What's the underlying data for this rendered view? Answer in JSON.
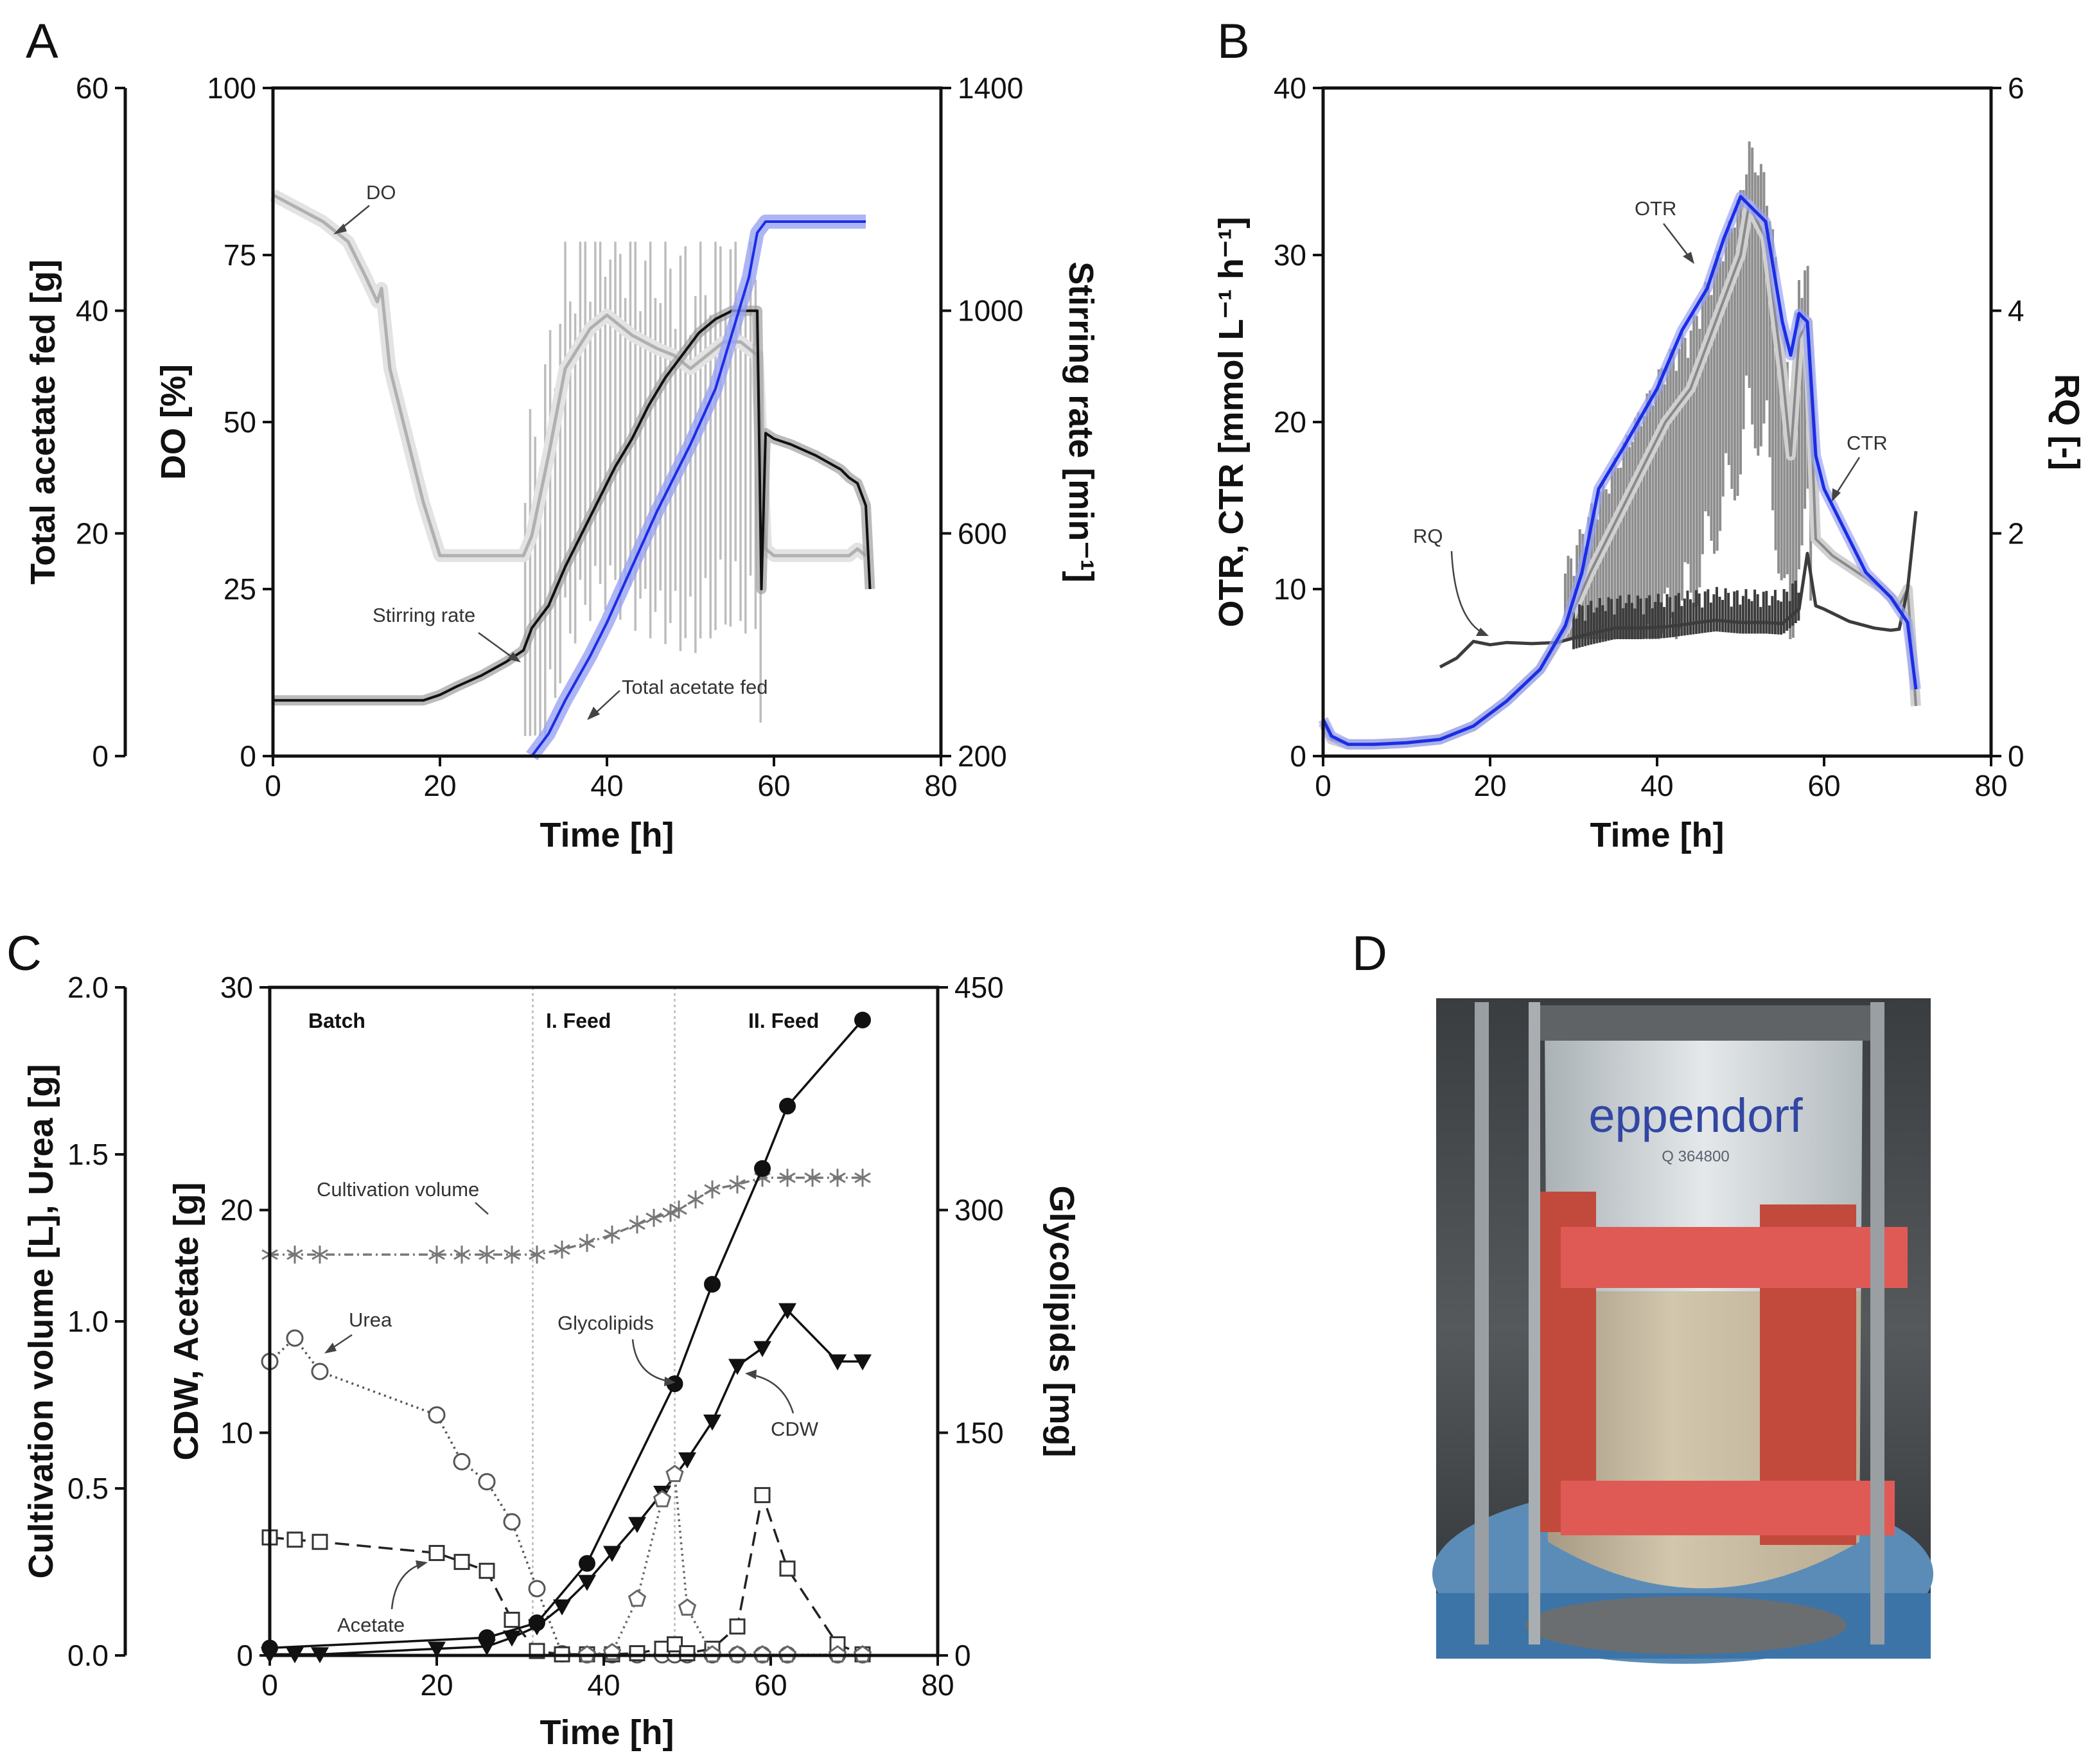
{
  "colors": {
    "axis": "#111111",
    "light_gray": "#bdbdbd",
    "mid_gray": "#8a8a8a",
    "dark_gray": "#3c3c3c",
    "black": "#111111",
    "blue": "#1a2ee6",
    "blue_band": "#9aa3f2",
    "phase_line": "#b8b8b8"
  },
  "chart_data": [
    {
      "panel": "A",
      "type": "line",
      "xlabel": "Time [h]",
      "xlim": [
        0,
        80
      ],
      "xticks": [
        0,
        20,
        40,
        60,
        80
      ],
      "axes": {
        "total_acetate": {
          "label": "Total acetate fed [g]",
          "lim": [
            0,
            60
          ],
          "ticks": [
            0,
            20,
            40,
            60
          ]
        },
        "do": {
          "label": "DO [%]",
          "lim": [
            0,
            100
          ],
          "ticks": [
            0,
            25,
            50,
            75,
            100
          ]
        },
        "stirring": {
          "label": "Stirring rate [min⁻¹]",
          "lim": [
            200,
            1400
          ],
          "ticks": [
            200,
            600,
            1000,
            1400
          ]
        }
      },
      "series": [
        {
          "name": "DO",
          "axis": "do",
          "x": [
            0,
            3,
            6,
            9,
            11,
            12.5,
            13,
            13.5,
            14,
            16,
            18,
            20,
            21,
            22,
            25,
            28,
            30,
            31,
            33,
            35,
            38,
            40,
            43,
            46,
            48,
            50,
            52,
            54,
            56,
            58,
            59,
            60,
            63,
            66,
            69,
            70,
            71
          ],
          "y": [
            84,
            82,
            80,
            77,
            72,
            68,
            70,
            64,
            58,
            48,
            38,
            30,
            30,
            30,
            30,
            30,
            30,
            33,
            45,
            58,
            64,
            66,
            63,
            61,
            60,
            58,
            60,
            62,
            62,
            60,
            31,
            30,
            30,
            30,
            30,
            31,
            30
          ]
        },
        {
          "name": "Stirring rate",
          "axis": "stirring",
          "x": [
            0,
            5,
            10,
            15,
            18,
            20,
            22,
            25,
            28,
            30,
            31,
            33,
            35,
            37,
            39,
            41,
            43,
            45,
            47,
            49,
            51,
            53,
            55,
            58,
            58.5,
            59,
            60,
            62,
            65,
            68,
            69,
            70,
            71,
            71.5
          ],
          "y": [
            300,
            300,
            300,
            300,
            300,
            310,
            325,
            345,
            370,
            390,
            430,
            470,
            540,
            600,
            660,
            720,
            770,
            830,
            880,
            920,
            960,
            985,
            1000,
            1000,
            500,
            780,
            770,
            760,
            740,
            715,
            700,
            690,
            650,
            500
          ]
        },
        {
          "name": "Total acetate fed",
          "axis": "total_acetate",
          "x": [
            31,
            33,
            35,
            38,
            40,
            43,
            46,
            50,
            53,
            55,
            57,
            58,
            59,
            60,
            65,
            70,
            71
          ],
          "y": [
            0,
            2,
            5,
            9,
            12,
            17,
            22,
            28,
            33,
            38,
            43,
            47,
            48,
            48,
            48,
            48,
            48
          ]
        }
      ],
      "annotations": [
        "DO",
        "Stirring rate",
        "Total acetate fed"
      ]
    },
    {
      "panel": "B",
      "type": "line",
      "xlabel": "Time [h]",
      "xlim": [
        0,
        80
      ],
      "xticks": [
        0,
        20,
        40,
        60,
        80
      ],
      "axes": {
        "rates": {
          "label": "OTR, CTR [mmol L⁻¹ h⁻¹]",
          "lim": [
            0,
            40
          ],
          "ticks": [
            0,
            10,
            20,
            30,
            40
          ]
        },
        "rq": {
          "label": "RQ [-]",
          "lim": [
            0,
            6
          ],
          "ticks": [
            0,
            2,
            4,
            6
          ]
        }
      },
      "series": [
        {
          "name": "OTR",
          "axis": "rates",
          "x": [
            0,
            1,
            3,
            6,
            10,
            14,
            18,
            22,
            26,
            29,
            32,
            35,
            38,
            41,
            44,
            47,
            50,
            51,
            53,
            55,
            56,
            57,
            58,
            59,
            61,
            64,
            67,
            69,
            70,
            71
          ],
          "y": [
            2,
            1,
            0.7,
            0.7,
            0.8,
            1,
            1.8,
            3.3,
            5.2,
            7.6,
            11,
            14,
            17,
            20,
            22,
            26,
            30,
            33,
            31,
            23,
            18,
            25,
            26,
            13,
            12,
            11,
            10,
            9,
            10,
            3
          ]
        },
        {
          "name": "CTR",
          "axis": "rates",
          "x": [
            0,
            1,
            3,
            6,
            10,
            14,
            18,
            22,
            26,
            29,
            31,
            33,
            36,
            40,
            43,
            46,
            48,
            50,
            51,
            53,
            54,
            55,
            56,
            57,
            58,
            59,
            60,
            62,
            65,
            68,
            70,
            71
          ],
          "y": [
            2.2,
            1.2,
            0.7,
            0.7,
            0.8,
            1,
            1.8,
            3.3,
            5.2,
            7.8,
            11,
            16,
            18.5,
            22,
            25.5,
            28,
            31,
            33.5,
            33,
            32,
            29,
            26,
            24,
            26.5,
            26,
            18,
            16,
            14,
            11,
            9.5,
            8,
            4
          ]
        },
        {
          "name": "RQ",
          "axis": "rq",
          "x": [
            14,
            16,
            18,
            20,
            22,
            25,
            28,
            30,
            32,
            35,
            38,
            41,
            44,
            47,
            50,
            53,
            55,
            57,
            58,
            59,
            60,
            63,
            66,
            68,
            69,
            70,
            71
          ],
          "y": [
            0.8,
            0.88,
            1.03,
            1.0,
            1.02,
            1.01,
            1.02,
            1.06,
            1.1,
            1.15,
            1.15,
            1.16,
            1.19,
            1.22,
            1.2,
            1.2,
            1.19,
            1.32,
            1.82,
            1.35,
            1.32,
            1.21,
            1.15,
            1.13,
            1.14,
            1.5,
            2.2
          ]
        }
      ],
      "annotations": [
        "OTR",
        "CTR",
        "RQ"
      ]
    },
    {
      "panel": "C",
      "type": "scatter",
      "xlabel": "Time [h]",
      "xlim": [
        0,
        80
      ],
      "xticks": [
        0,
        20,
        40,
        60,
        80
      ],
      "axes": {
        "volume_urea": {
          "label": "Cultivation volume [L], Urea [g]",
          "lim": [
            0,
            2
          ],
          "ticks": [
            0.0,
            0.5,
            1.0,
            1.5,
            2.0
          ]
        },
        "cdw_acetate": {
          "label": "CDW, Acetate [g]",
          "lim": [
            0,
            30
          ],
          "ticks": [
            0,
            10,
            20,
            30
          ]
        },
        "glycolipids": {
          "label": "Glycolipids [mg]",
          "lim": [
            0,
            450
          ],
          "ticks": [
            0,
            150,
            300,
            450
          ]
        }
      },
      "phases": [
        {
          "label": "Batch",
          "start": 0,
          "end": 31.5
        },
        {
          "label": "I. Feed",
          "start": 31.5,
          "end": 48.5
        },
        {
          "label": "II. Feed",
          "start": 48.5,
          "end": 80
        }
      ],
      "series": [
        {
          "name": "Cultivation volume",
          "axis": "volume_urea",
          "marker": "asterisk",
          "x": [
            0,
            3,
            6,
            20,
            23,
            26,
            29,
            32,
            35,
            38,
            41,
            44,
            46,
            48,
            49,
            51,
            53,
            56,
            59,
            62,
            65,
            68,
            71
          ],
          "y": [
            1.2,
            1.2,
            1.2,
            1.2,
            1.2,
            1.2,
            1.2,
            1.2,
            1.215,
            1.235,
            1.26,
            1.29,
            1.31,
            1.325,
            1.335,
            1.365,
            1.395,
            1.41,
            1.43,
            1.43,
            1.43,
            1.43,
            1.43
          ]
        },
        {
          "name": "Urea",
          "axis": "volume_urea",
          "marker": "open-circle",
          "x": [
            0,
            3,
            6,
            20,
            23,
            26,
            29,
            32,
            35,
            38,
            41,
            44,
            47,
            48.5,
            50,
            53,
            56,
            59,
            62,
            68,
            71
          ],
          "y": [
            0.88,
            0.95,
            0.85,
            0.72,
            0.58,
            0.52,
            0.4,
            0.2,
            0.005,
            0.002,
            0.002,
            0.002,
            0.002,
            0.002,
            0.002,
            0.002,
            0.002,
            0.002,
            0.002,
            0.002,
            0.002
          ]
        },
        {
          "name": "CDW",
          "axis": "cdw_acetate",
          "marker": "down-triangle",
          "x": [
            0,
            3,
            6,
            20,
            26,
            29,
            32,
            35,
            38,
            41,
            44,
            47,
            50,
            53,
            56,
            59,
            62,
            68,
            71
          ],
          "y": [
            0.05,
            0.05,
            0.05,
            0.3,
            0.4,
            0.8,
            1.3,
            2.2,
            3.3,
            4.6,
            5.9,
            7.3,
            8.8,
            10.5,
            13,
            13.8,
            15.5,
            13.2,
            13.2
          ]
        },
        {
          "name": "Acetate",
          "axis": "cdw_acetate",
          "marker": "open-square",
          "x": [
            0,
            3,
            6,
            20,
            23,
            26,
            29,
            32,
            35,
            38,
            41,
            44,
            47,
            48.5,
            50,
            53,
            56,
            59,
            62,
            68,
            71
          ],
          "y": [
            5.3,
            5.2,
            5.1,
            4.6,
            4.2,
            3.8,
            1.6,
            0.2,
            0.05,
            0.05,
            0.05,
            0.1,
            0.3,
            0.5,
            0.1,
            0.3,
            1.3,
            7.2,
            3.9,
            0.5,
            0.05
          ]
        },
        {
          "name": "Glycolipids (solid)",
          "axis": "glycolipids",
          "marker": "filled-circle",
          "x": [
            0,
            26,
            32,
            38,
            48.5,
            53,
            59,
            62,
            71
          ],
          "y": [
            5,
            12,
            22,
            62,
            183,
            250,
            328,
            370,
            428
          ]
        },
        {
          "name": "Glycolipids (dotted)",
          "axis": "glycolipids",
          "marker": "open-pentagon",
          "x": [
            38,
            41,
            44,
            47,
            48.5,
            50,
            53,
            56,
            59,
            62,
            68,
            71
          ],
          "y": [
            0.5,
            2,
            38,
            105,
            122,
            32,
            0.5,
            0.5,
            0.5,
            0.5,
            0.5,
            0.5
          ]
        }
      ],
      "annotations": [
        "Cultivation volume",
        "Urea",
        "Glycolipids",
        "CDW",
        "Acetate"
      ]
    }
  ],
  "panel_D": {
    "letter": "D",
    "brand_text": "eppendorf",
    "serial_text": "Q 364800"
  }
}
